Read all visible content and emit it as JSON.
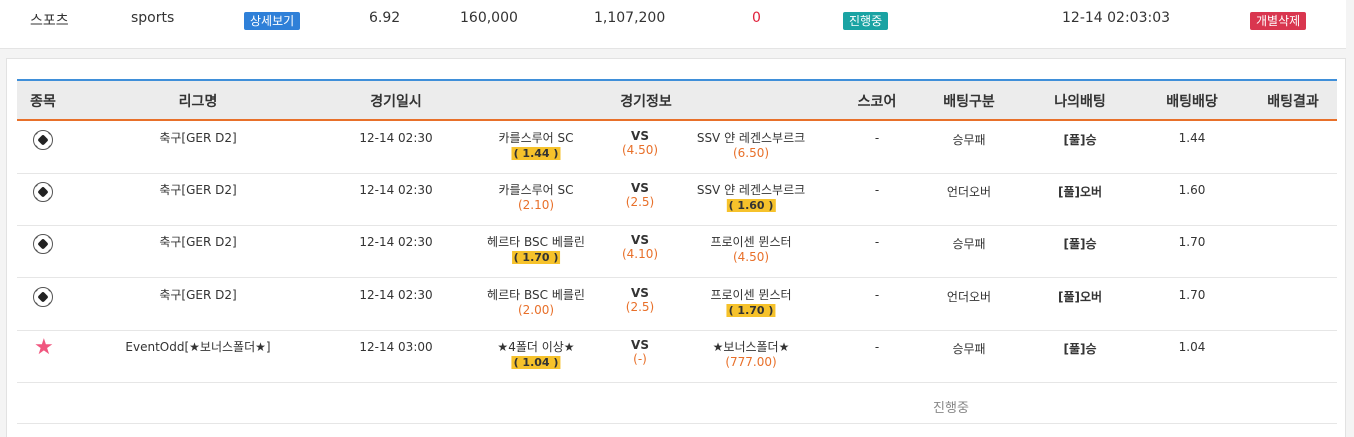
{
  "summary": {
    "sport": "스포츠",
    "type": "sports",
    "detail_button": "상세보기",
    "total_odds": "6.92",
    "bet_amount": "160,000",
    "expected_win": "1,107,200",
    "win_amount": "0",
    "status": "진행중",
    "datetime": "12-14 02:03:03",
    "delete_button": "개별삭제"
  },
  "table": {
    "headers": [
      "종목",
      "리그명",
      "경기일시",
      "경기정보",
      "스코어",
      "배팅구분",
      "나의배팅",
      "배팅배당",
      "배팅결과"
    ],
    "rows": [
      {
        "icon": "soccer-ball-icon",
        "league": "축구[GER D2]",
        "datetime": "12-14 02:30",
        "home": "카를스루어 SC",
        "home_odds": "1.44",
        "vs": "VS",
        "draw_odds": "(4.50)",
        "away": "SSV 얀 레겐스부르크",
        "away_odds": "(6.50)",
        "selected": "home",
        "score": "-",
        "bet_type": "승무패",
        "my_bet": "[풀]승",
        "bet_odds": "1.44",
        "result": ""
      },
      {
        "icon": "soccer-ball-icon",
        "league": "축구[GER D2]",
        "datetime": "12-14 02:30",
        "home": "카를스루어 SC",
        "home_odds": "(2.10)",
        "vs": "VS",
        "draw_odds": "(2.5)",
        "away": "SSV 얀 레겐스부르크",
        "away_odds": "1.60",
        "selected": "away",
        "score": "-",
        "bet_type": "언더오버",
        "my_bet": "[풀]오버",
        "bet_odds": "1.60",
        "result": ""
      },
      {
        "icon": "soccer-ball-icon",
        "league": "축구[GER D2]",
        "datetime": "12-14 02:30",
        "home": "헤르타 BSC 베를린",
        "home_odds": "1.70",
        "vs": "VS",
        "draw_odds": "(4.10)",
        "away": "프로이센 뮌스터",
        "away_odds": "(4.50)",
        "selected": "home",
        "score": "-",
        "bet_type": "승무패",
        "my_bet": "[풀]승",
        "bet_odds": "1.70",
        "result": ""
      },
      {
        "icon": "soccer-ball-icon",
        "league": "축구[GER D2]",
        "datetime": "12-14 02:30",
        "home": "헤르타 BSC 베를린",
        "home_odds": "(2.00)",
        "vs": "VS",
        "draw_odds": "(2.5)",
        "away": "프로이센 뮌스터",
        "away_odds": "1.70",
        "selected": "away",
        "score": "-",
        "bet_type": "언더오버",
        "my_bet": "[풀]오버",
        "bet_odds": "1.70",
        "result": ""
      },
      {
        "icon": "star-icon",
        "league": "EventOdd[★보너스폴더★]",
        "datetime": "12-14 03:00",
        "home": "★4폴더 이상★",
        "home_odds": "1.04",
        "vs": "VS",
        "draw_odds": "(-)",
        "away": "★보너스폴더★",
        "away_odds": "(777.00)",
        "selected": "home",
        "score": "-",
        "bet_type": "승무패",
        "my_bet": "[풀]승",
        "bet_odds": "1.04",
        "result": ""
      }
    ],
    "footer_status": "진행중"
  },
  "colors": {
    "header_top_border": "#3f8fd9",
    "header_bottom_border": "#e8702a",
    "odds_orange": "#e8702a",
    "selected_highlight": "#f6c22b",
    "detail_badge": "#2f80d8",
    "status_badge": "#1aa3a3",
    "delete_badge": "#d9364f"
  }
}
